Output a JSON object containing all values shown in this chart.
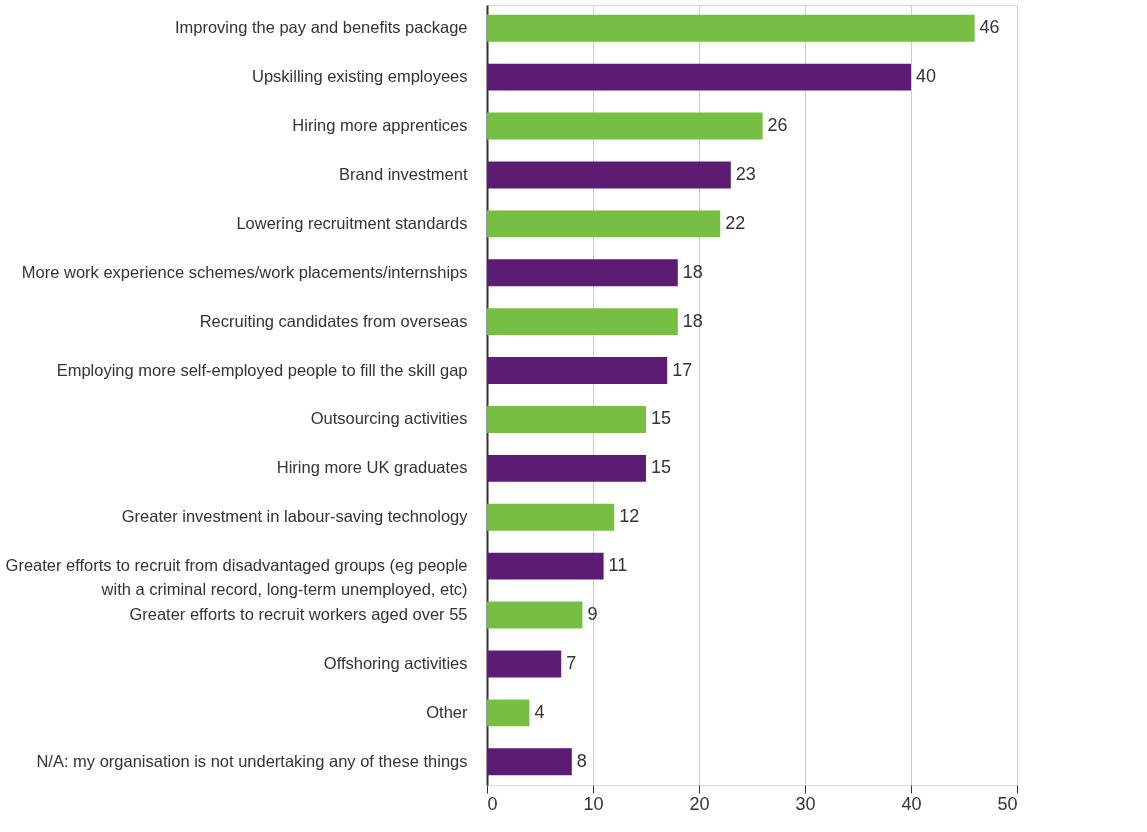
{
  "chart_data": {
    "type": "bar",
    "orientation": "horizontal",
    "categories": [
      "Improving the pay and benefits package",
      "Upskilling existing employees",
      "Hiring more apprentices",
      "Brand investment",
      "Lowering recruitment standards",
      "More work experience schemes/work placements/internships",
      "Recruiting candidates from overseas",
      "Employing more self-employed people to fill the skill gap",
      "Outsourcing activities",
      "Hiring more UK graduates",
      "Greater investment in labour-saving technology",
      "Greater efforts to recruit from disadvantaged groups (eg people\nwith a criminal record, long-term unemployed, etc)",
      "Greater efforts to recruit workers aged over 55",
      "Offshoring activities",
      "Other",
      "N/A: my organisation is not undertaking any of these things"
    ],
    "values": [
      46,
      40,
      26,
      23,
      22,
      18,
      18,
      17,
      15,
      15,
      12,
      11,
      9,
      7,
      4,
      8
    ],
    "colors": [
      "#76bf43",
      "#5c1c74",
      "#76bf43",
      "#5c1c74",
      "#76bf43",
      "#5c1c74",
      "#76bf43",
      "#5c1c74",
      "#76bf43",
      "#5c1c74",
      "#76bf43",
      "#5c1c74",
      "#76bf43",
      "#5c1c74",
      "#76bf43",
      "#5c1c74"
    ],
    "xlim": [
      0,
      50
    ],
    "xticks": [
      0,
      10,
      20,
      30,
      40,
      50
    ],
    "data_labels": true,
    "grid": "x"
  }
}
